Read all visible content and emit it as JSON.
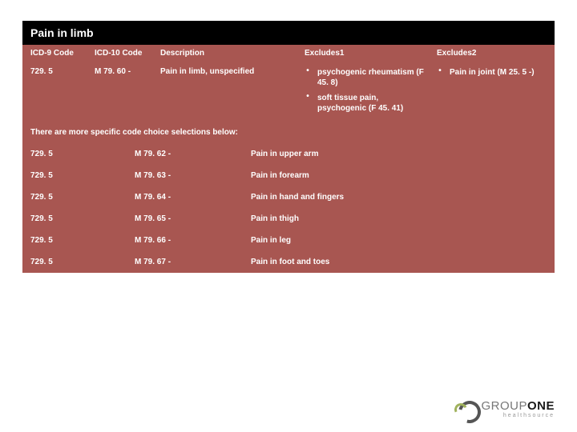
{
  "colors": {
    "title_bg": "#000000",
    "table_bg": "#a85651",
    "text_on_dark": "#ffffff",
    "page_bg": "#ffffff"
  },
  "typography": {
    "title_fontsize_pt": 14,
    "body_fontsize_pt": 10,
    "font_family": "Arial"
  },
  "title": "Pain in limb",
  "main_headers": {
    "icd9": "ICD-9 Code",
    "icd10": "ICD-10 Code",
    "desc": "Description",
    "ex1": "Excludes1",
    "ex2": "Excludes2"
  },
  "main_row": {
    "icd9": "729. 5",
    "icd10": "M 79. 60 -",
    "desc": "Pain in limb, unspecified",
    "excludes1": [
      "psychogenic rheumatism (F 45. 8)",
      "soft tissue pain, psychogenic (F 45. 41)"
    ],
    "excludes2": [
      "Pain in joint (M 25. 5 -)"
    ]
  },
  "sub_heading": "There are more specific code choice selections below:",
  "sub_rows": [
    {
      "icd9": "729. 5",
      "icd10": "M 79. 62 -",
      "desc": "Pain in upper arm"
    },
    {
      "icd9": "729. 5",
      "icd10": "M 79. 63 -",
      "desc": "Pain in forearm"
    },
    {
      "icd9": "729. 5",
      "icd10": "M 79. 64 -",
      "desc": "Pain in hand and fingers"
    },
    {
      "icd9": "729. 5",
      "icd10": "M 79. 65 -",
      "desc": "Pain in thigh"
    },
    {
      "icd9": "729. 5",
      "icd10": "M 79. 66 -",
      "desc": "Pain in leg"
    },
    {
      "icd9": "729. 5",
      "icd10": "M 79. 67 -",
      "desc": "Pain in foot and toes"
    }
  ],
  "logo": {
    "line1_a": "GROUP",
    "line1_b": "ONE",
    "line2": "healthsource"
  }
}
